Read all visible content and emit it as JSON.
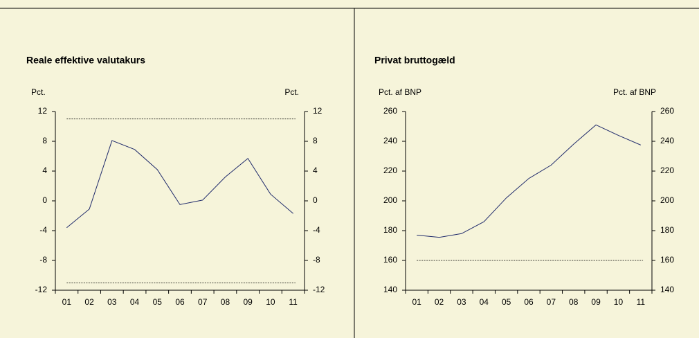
{
  "chart_data": [
    {
      "type": "line",
      "title": "Reale effektive valutakurs",
      "y_label": "Pct.",
      "y2_label": "Pct.",
      "categories": [
        "01",
        "02",
        "03",
        "04",
        "05",
        "06",
        "07",
        "08",
        "09",
        "10",
        "11"
      ],
      "series": [
        {
          "color": "#1f2a6b",
          "values": [
            -3.6,
            -1.1,
            8.1,
            6.9,
            4.2,
            -0.5,
            0.1,
            3.2,
            5.7,
            0.9,
            -1.7
          ]
        }
      ],
      "thresholds": [
        11,
        -11
      ],
      "ylim": [
        -12,
        12
      ],
      "yticks": [
        -12,
        -8,
        -4,
        0,
        4,
        8,
        12
      ]
    },
    {
      "type": "line",
      "title": "Privat bruttogæld",
      "y_label": "Pct. af BNP",
      "y2_label": "Pct. af BNP",
      "categories": [
        "01",
        "02",
        "03",
        "04",
        "05",
        "06",
        "07",
        "08",
        "09",
        "10",
        "11"
      ],
      "series": [
        {
          "color": "#1f2a6b",
          "values": [
            177,
            175.5,
            178,
            186,
            202,
            215,
            224,
            238,
            251,
            244,
            237.5
          ]
        }
      ],
      "thresholds": [
        160
      ],
      "ylim": [
        140,
        260
      ],
      "yticks": [
        140,
        160,
        180,
        200,
        220,
        240,
        260
      ]
    }
  ]
}
